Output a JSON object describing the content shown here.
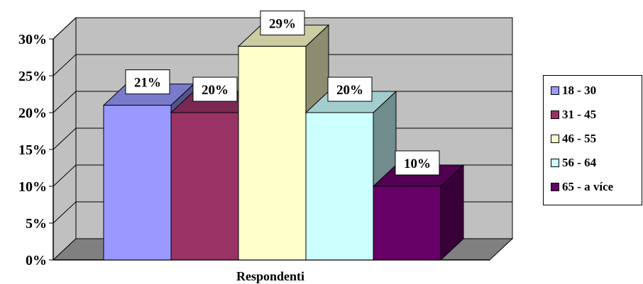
{
  "chart_data": {
    "type": "bar",
    "xlabel": "Respondenti",
    "ylabel": "",
    "ylim": [
      0,
      30
    ],
    "yticks": [
      "0%",
      "5%",
      "10%",
      "15%",
      "20%",
      "25%",
      "30%"
    ],
    "grid": true,
    "legend_position": "right",
    "series": [
      {
        "name": "18 - 30",
        "value": 21,
        "label": "21%",
        "color": "#9999ff"
      },
      {
        "name": "31 - 45",
        "value": 20,
        "label": "20%",
        "color": "#993366"
      },
      {
        "name": "46 - 55",
        "value": 29,
        "label": "29%",
        "color": "#ffffcc"
      },
      {
        "name": "56 - 64",
        "value": 20,
        "label": "20%",
        "color": "#ccffff"
      },
      {
        "name": "65 - a více",
        "value": 10,
        "label": "10%",
        "color": "#660066"
      }
    ],
    "wall_color": "#c0c0c0",
    "floor_color": "#808080"
  }
}
